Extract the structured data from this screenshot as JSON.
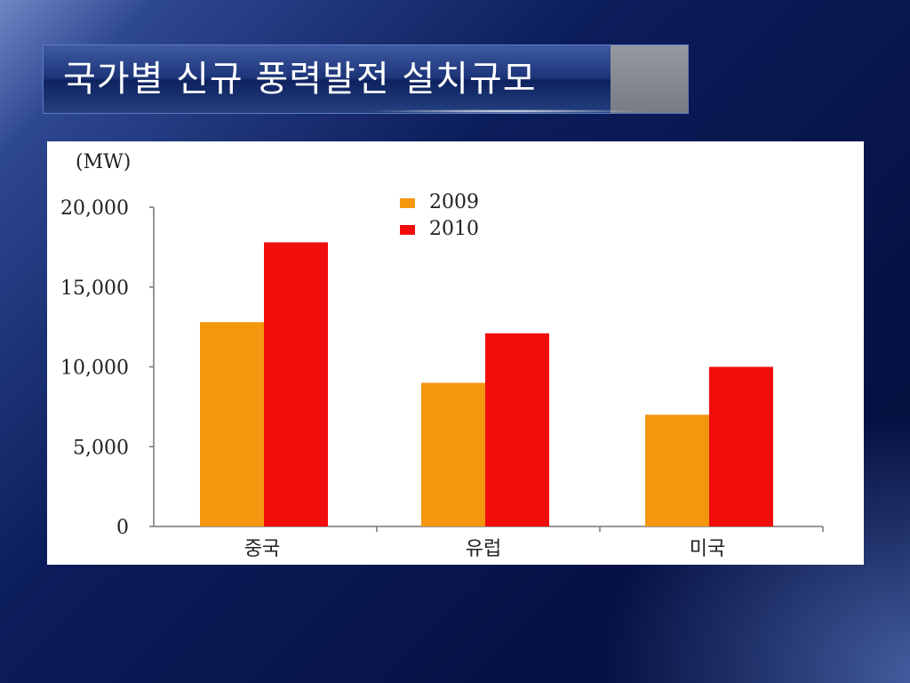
{
  "slide": {
    "title": "국가별 신규 풍력발전 설치규모"
  },
  "colors": {
    "series_2009": "#F5960F",
    "series_2010": "#F20D0D"
  },
  "chart_data": {
    "type": "bar",
    "title": "",
    "unit_label": "(MW)",
    "categories": [
      "중국",
      "유럽",
      "미국"
    ],
    "series": [
      {
        "name": "2009",
        "values": [
          12800,
          9000,
          7000
        ]
      },
      {
        "name": "2010",
        "values": [
          17800,
          12100,
          10000
        ]
      }
    ],
    "ylim": [
      0,
      20000
    ],
    "yticks": [
      0,
      5000,
      10000,
      15000,
      20000
    ],
    "ytick_labels": [
      "0",
      "5,000",
      "10,000",
      "15,000",
      "20,000"
    ],
    "grid": false,
    "legend_position": "top-center"
  }
}
